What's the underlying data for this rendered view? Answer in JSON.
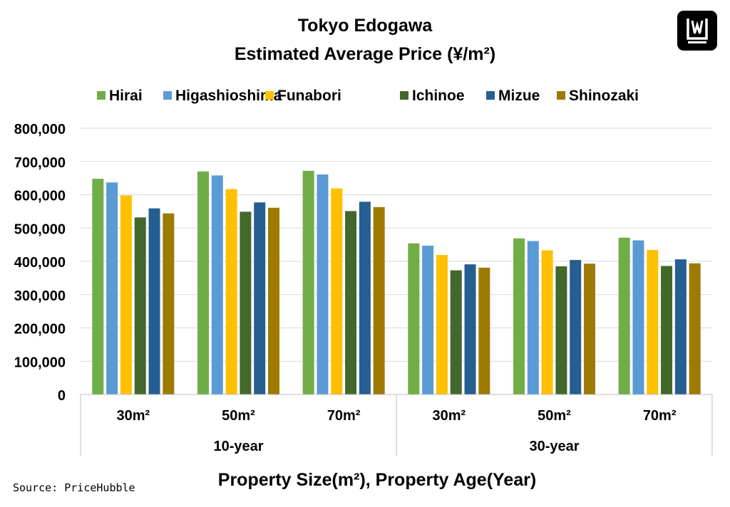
{
  "header": {
    "title": "Tokyo Edogawa",
    "subtitle": "Estimated Average Price (¥/m²)"
  },
  "footer": {
    "source": "Source: PriceHubble",
    "xlabel": "Property Size(m²), Property Age(Year)"
  },
  "chart_data": {
    "type": "bar",
    "title": "Tokyo Edogawa",
    "subtitle": "Estimated Average Price (¥/m²)",
    "xlabel": "Property Size(m²), Property Age(Year)",
    "ylabel": "",
    "ylim": [
      0,
      800000
    ],
    "yticks": [
      0,
      100000,
      200000,
      300000,
      400000,
      500000,
      600000,
      700000,
      800000
    ],
    "ytick_labels": [
      "0",
      "100,000",
      "200,000",
      "300,000",
      "400,000",
      "500,000",
      "600,000",
      "700,000",
      "800,000"
    ],
    "grid": true,
    "legend_position": "top",
    "categories": [
      "30m²",
      "50m²",
      "70m²",
      "30m²",
      "50m²",
      "70m²"
    ],
    "groups": [
      {
        "label": "10-year",
        "categories": [
          "30m²",
          "50m²",
          "70m²"
        ]
      },
      {
        "label": "30-year",
        "categories": [
          "30m²",
          "50m²",
          "70m²"
        ]
      }
    ],
    "series": [
      {
        "name": "Hirai",
        "color": "#70ad47",
        "values": [
          648000,
          670000,
          672000,
          454000,
          469000,
          471000
        ]
      },
      {
        "name": "Higashioshima",
        "color": "#5b9bd5",
        "values": [
          637000,
          658000,
          661000,
          447000,
          461000,
          463000
        ]
      },
      {
        "name": "Funabori",
        "color": "#ffc000",
        "values": [
          598000,
          617000,
          619000,
          419000,
          433000,
          434000
        ]
      },
      {
        "name": "Ichinoe",
        "color": "#43682b",
        "values": [
          532000,
          549000,
          551000,
          373000,
          385000,
          386000
        ]
      },
      {
        "name": "Mizue",
        "color": "#255e91",
        "values": [
          559000,
          577000,
          579000,
          391000,
          404000,
          406000
        ]
      },
      {
        "name": "Shinozaki",
        "color": "#9e7a00",
        "values": [
          544000,
          561000,
          563000,
          381000,
          393000,
          394000
        ]
      }
    ]
  },
  "logo": {
    "name": "w-logo-icon"
  }
}
